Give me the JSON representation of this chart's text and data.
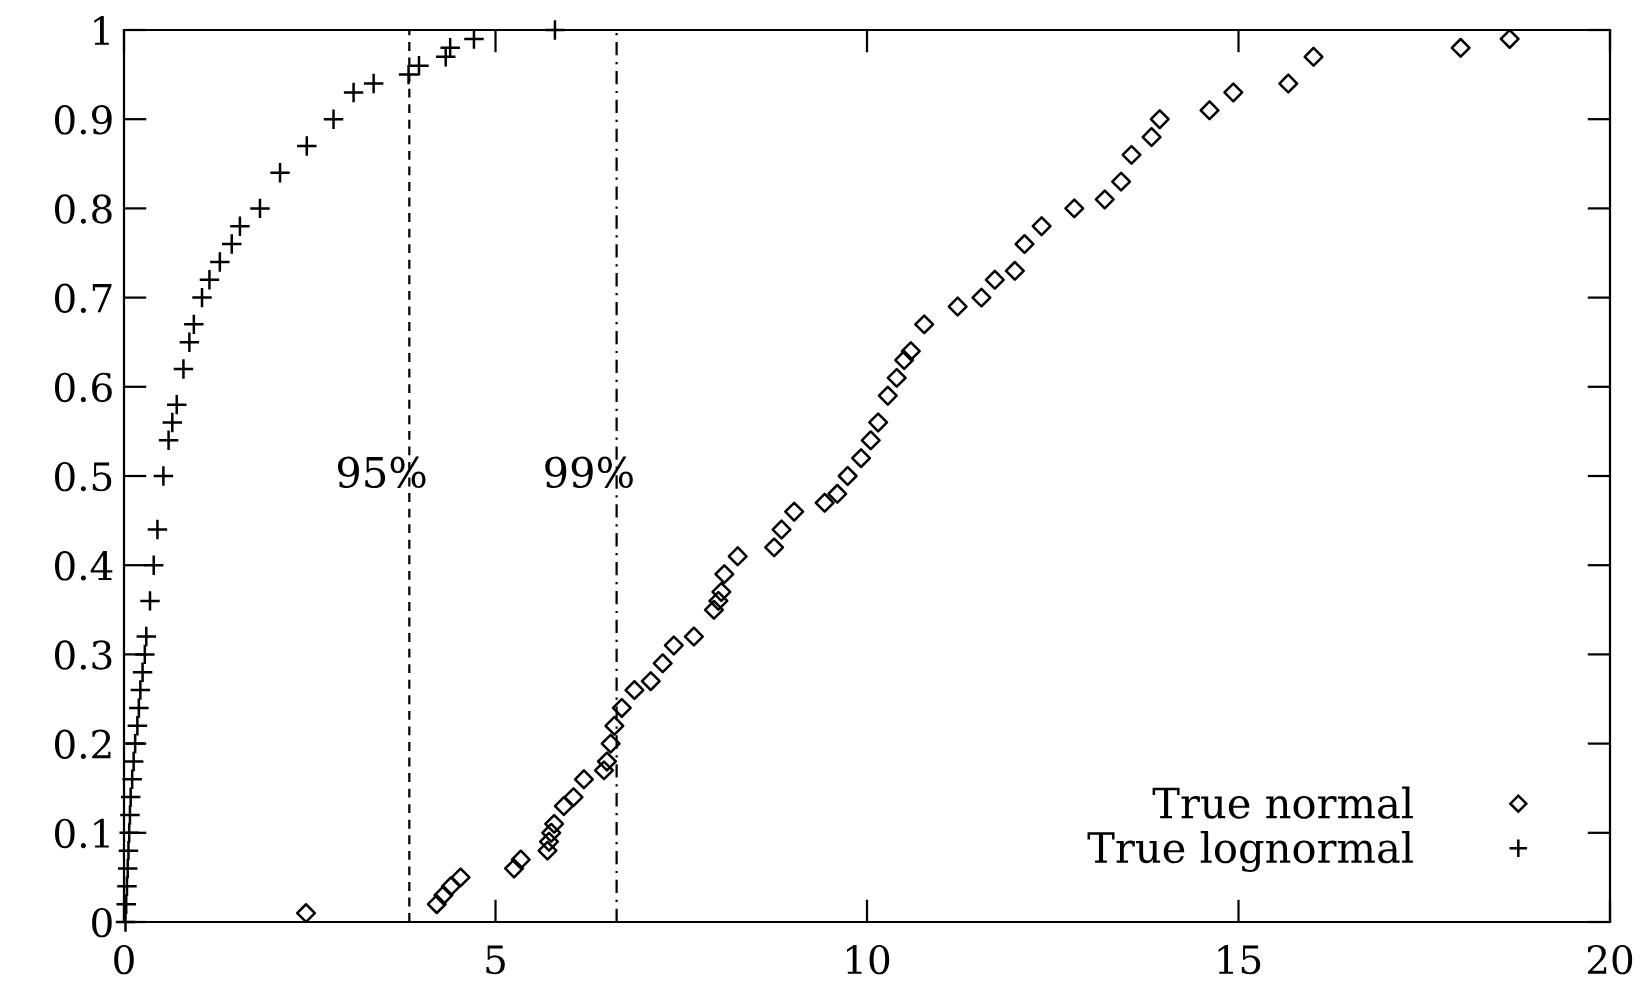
{
  "chart_data": {
    "type": "scatter",
    "xlim": [
      0,
      20
    ],
    "ylim": [
      0,
      1
    ],
    "xticks": [
      0,
      5,
      10,
      15,
      20
    ],
    "yticks": [
      0,
      0.1,
      0.2,
      0.3,
      0.4,
      0.5,
      0.6,
      0.7,
      0.8,
      0.9,
      1
    ],
    "grid": false,
    "legend": "bottom right",
    "series": [
      {
        "name": "True normal",
        "color": "#000000",
        "marker": "diamond",
        "x": [
          2.45,
          4.21,
          4.3,
          4.4,
          4.53,
          5.25,
          5.34,
          5.7,
          5.72,
          5.75,
          5.79,
          5.92,
          6.05,
          6.19,
          6.46,
          6.5,
          6.55,
          6.6,
          6.7,
          6.87,
          7.09,
          7.25,
          7.4,
          7.67,
          7.94,
          8.0,
          8.04,
          8.08,
          8.26,
          8.75,
          8.85,
          9.02,
          9.43,
          9.6,
          9.74,
          9.92,
          10.05,
          10.15,
          10.28,
          10.4,
          10.5,
          10.59,
          10.77,
          11.22,
          11.54,
          11.72,
          11.99,
          12.12,
          12.35,
          12.79,
          13.2,
          13.42,
          13.56,
          13.83,
          13.94,
          14.61,
          14.93,
          15.67,
          16.01,
          17.99,
          18.65
        ],
        "values": [
          0.01,
          0.02,
          0.03,
          0.04,
          0.05,
          0.06,
          0.07,
          0.08,
          0.09,
          0.1,
          0.11,
          0.13,
          0.14,
          0.16,
          0.17,
          0.18,
          0.2,
          0.22,
          0.24,
          0.26,
          0.27,
          0.29,
          0.31,
          0.32,
          0.35,
          0.36,
          0.37,
          0.39,
          0.41,
          0.42,
          0.44,
          0.46,
          0.47,
          0.48,
          0.5,
          0.52,
          0.54,
          0.56,
          0.59,
          0.61,
          0.63,
          0.64,
          0.67,
          0.69,
          0.7,
          0.72,
          0.73,
          0.76,
          0.78,
          0.8,
          0.81,
          0.83,
          0.86,
          0.88,
          0.9,
          0.91,
          0.93,
          0.94,
          0.97,
          0.98,
          0.99
        ]
      },
      {
        "name": "True lognormal",
        "color": "#000000",
        "marker": "cross",
        "x": [
          0.02,
          0.03,
          0.04,
          0.05,
          0.06,
          0.07,
          0.08,
          0.09,
          0.11,
          0.13,
          0.15,
          0.18,
          0.2,
          0.22,
          0.25,
          0.28,
          0.3,
          0.35,
          0.4,
          0.45,
          0.53,
          0.6,
          0.65,
          0.71,
          0.8,
          0.88,
          0.94,
          1.05,
          1.15,
          1.29,
          1.45,
          1.56,
          1.83,
          2.1,
          2.46,
          2.82,
          3.09,
          3.36,
          3.83,
          3.97,
          4.33,
          4.39,
          4.71,
          5.8
        ],
        "values": [
          0.0,
          0.02,
          0.04,
          0.06,
          0.08,
          0.1,
          0.12,
          0.14,
          0.16,
          0.18,
          0.2,
          0.22,
          0.24,
          0.26,
          0.28,
          0.3,
          0.32,
          0.36,
          0.4,
          0.44,
          0.5,
          0.54,
          0.56,
          0.58,
          0.62,
          0.65,
          0.67,
          0.7,
          0.72,
          0.74,
          0.76,
          0.78,
          0.8,
          0.84,
          0.87,
          0.9,
          0.93,
          0.94,
          0.95,
          0.96,
          0.97,
          0.98,
          0.99,
          1.0
        ]
      }
    ],
    "ref_lines": [
      {
        "axis": "x",
        "value": 3.84,
        "line_style": "dashed"
      },
      {
        "axis": "x",
        "value": 6.63,
        "line_style": "dashdot"
      }
    ],
    "annotations": [
      {
        "text": "95%",
        "x": 3.84,
        "y": 0.5
      },
      {
        "text": "99%",
        "x": 6.63,
        "y": 0.5
      }
    ]
  }
}
